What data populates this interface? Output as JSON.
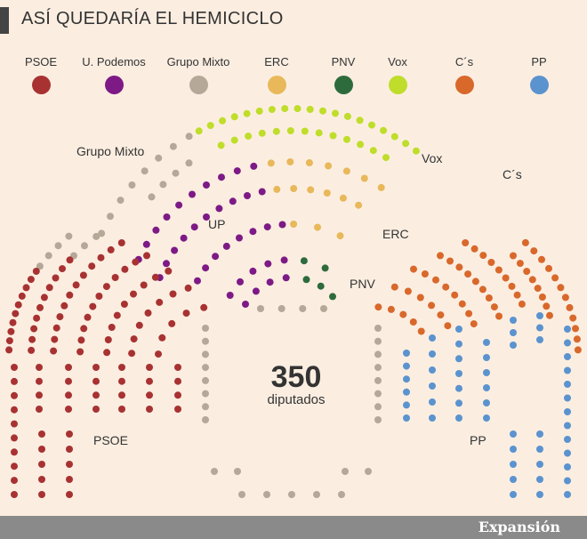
{
  "title": "ASÍ QUEDARÍA EL HEMICICLO",
  "legend": [
    {
      "label": "PSOE",
      "color": "#a83232"
    },
    {
      "label": "U. Podemos",
      "color": "#7d1a86"
    },
    {
      "label": "Grupo Mixto",
      "color": "#b5a898"
    },
    {
      "label": "ERC",
      "color": "#e8b85a"
    },
    {
      "label": "PNV",
      "color": "#2e6b3c"
    },
    {
      "label": "Vox",
      "color": "#bfdd2a"
    },
    {
      "label": "C´s",
      "color": "#d9682b"
    },
    {
      "label": "PP",
      "color": "#5b93cf"
    }
  ],
  "labels": {
    "mixto": "Grupo Mixto",
    "vox": "Vox",
    "cs": "C´s",
    "up": "UP",
    "erc": "ERC",
    "pnv": "PNV",
    "psoe": "PSOE",
    "pp": "PP"
  },
  "total": {
    "number": "350",
    "label": "diputados"
  },
  "brand": "Expansión",
  "chart_data": {
    "type": "parliament",
    "total_seats": 350,
    "series": [
      {
        "name": "PSOE",
        "color": "#a83232",
        "values": [
          123
        ]
      },
      {
        "name": "U. Podemos",
        "color": "#7d1a86",
        "values": [
          42
        ]
      },
      {
        "name": "Grupo Mixto",
        "color": "#b5a898",
        "values": [
          32
        ]
      },
      {
        "name": "ERC",
        "color": "#e8b85a",
        "values": [
          15
        ]
      },
      {
        "name": "PNV",
        "color": "#2e6b3c",
        "values": [
          6
        ]
      },
      {
        "name": "Vox",
        "color": "#bfdd2a",
        "values": [
          24
        ]
      },
      {
        "name": "C´s",
        "color": "#d9682b",
        "values": [
          57
        ]
      },
      {
        "name": "PP",
        "color": "#5b93cf",
        "values": [
          51
        ]
      }
    ]
  }
}
